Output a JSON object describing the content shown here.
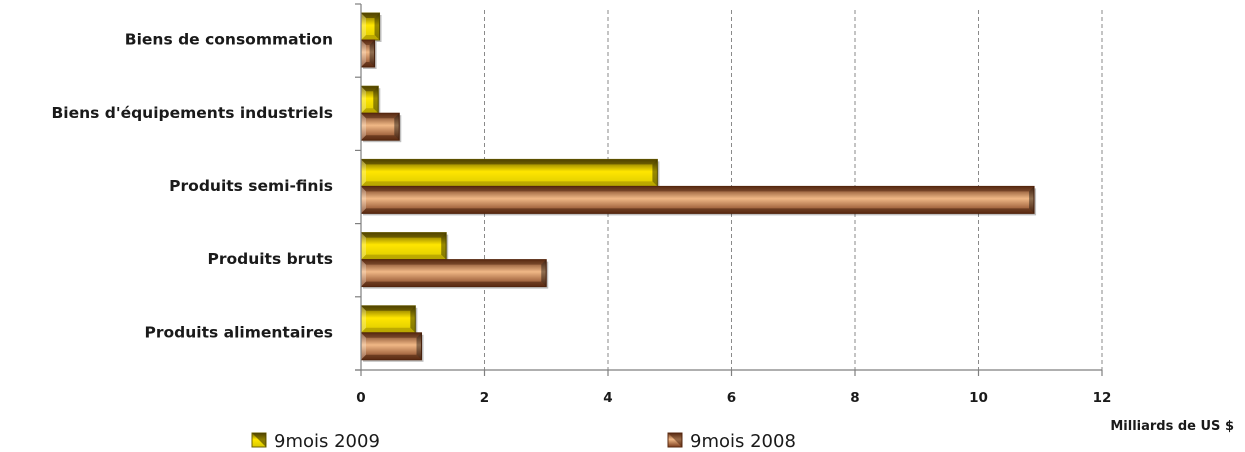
{
  "chart_data": {
    "type": "bar",
    "orientation": "horizontal",
    "categories": [
      "Biens de consommation",
      "Biens d'équipements industriels",
      "Produits semi-finis",
      "Produits bruts",
      "Produits alimentaires"
    ],
    "series": [
      {
        "name": "9mois 2009",
        "values": [
          0.3,
          0.28,
          4.8,
          1.38,
          0.88
        ],
        "color": "#f5e000"
      },
      {
        "name": "9mois 2008",
        "values": [
          0.22,
          0.62,
          10.9,
          3.0,
          0.98
        ],
        "color": "#c8733a"
      }
    ],
    "xlabel": "Milliards de US $",
    "xlim": [
      0,
      12
    ],
    "xticks": [
      "0",
      "2",
      "4",
      "6",
      "8",
      "10",
      "12"
    ],
    "grid": "vertical-dashed",
    "legend_position": "bottom"
  }
}
